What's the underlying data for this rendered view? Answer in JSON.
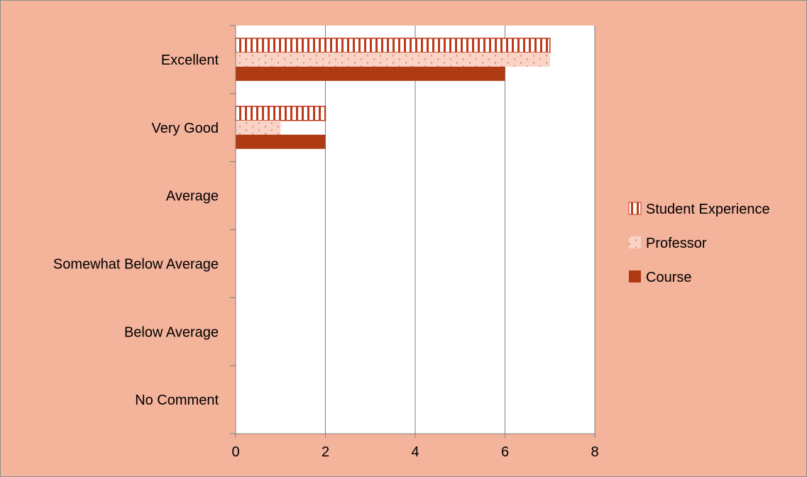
{
  "chart_data": {
    "type": "bar",
    "orientation": "horizontal",
    "categories": [
      "Excellent",
      "Very Good",
      "Average",
      "Somewhat Below Average",
      "Below Average",
      "No Comment"
    ],
    "series": [
      {
        "name": "Student Experience",
        "values": [
          7,
          2,
          0,
          0,
          0,
          0
        ],
        "pattern": "vertical-stripes"
      },
      {
        "name": "Professor",
        "values": [
          7,
          1,
          0,
          0,
          0,
          0
        ],
        "pattern": "dots"
      },
      {
        "name": "Course",
        "values": [
          6,
          2,
          0,
          0,
          0,
          0
        ],
        "pattern": "solid"
      }
    ],
    "xlim": [
      0,
      8
    ],
    "xticks": [
      "0",
      "2",
      "4",
      "6",
      "8"
    ],
    "grid": "vertical",
    "legend_position": "right",
    "title": "",
    "xlabel": "",
    "ylabel": ""
  },
  "colors": {
    "background": "#f4b39b",
    "plot_area": "#ffffff",
    "student_experience": "#c0391b",
    "professor": "#f9d4c6",
    "professor_dots": "#e58a6e",
    "course": "#ae3a14",
    "gridline": "#7f7f7f"
  }
}
